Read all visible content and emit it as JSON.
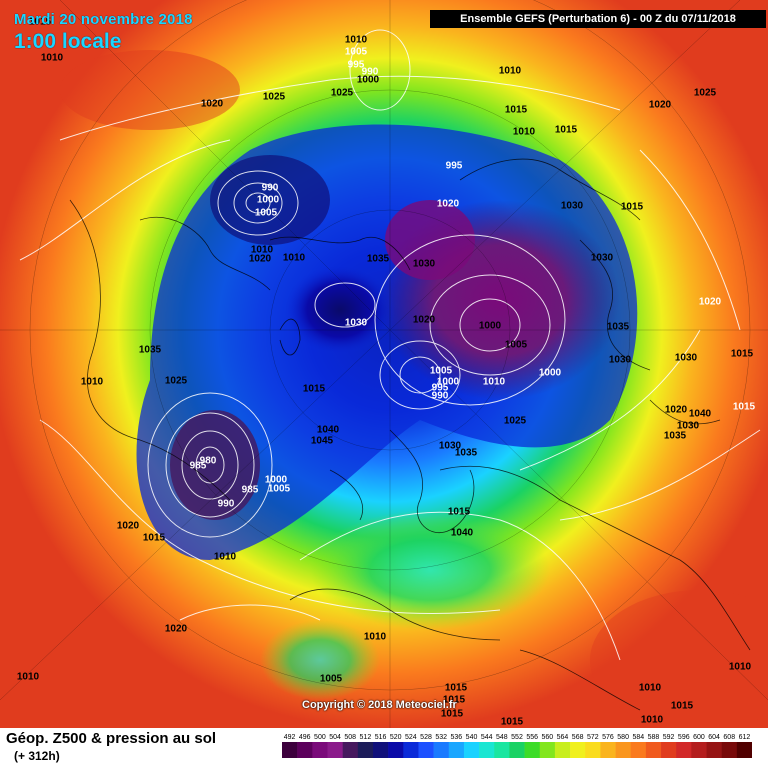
{
  "header": {
    "date": "Mardi 20 novembre 2018",
    "local_time": "1:00 locale",
    "run_info": "Ensemble GEFS  (Perturbation 6)  -  00 Z du 07/11/2018"
  },
  "footer": {
    "field_title": "Géop. Z500 & pression au sol",
    "lead_time": "(+ 312h)",
    "copyright": "Copyright © 2018 Meteociel.fr"
  },
  "colorscale": {
    "labels": [
      "492",
      "496",
      "500",
      "504",
      "508",
      "512",
      "516",
      "520",
      "524",
      "528",
      "532",
      "536",
      "540",
      "544",
      "548",
      "552",
      "556",
      "560",
      "564",
      "568",
      "572",
      "576",
      "580",
      "584",
      "588",
      "592",
      "596",
      "600",
      "604",
      "608",
      "612"
    ],
    "colors": [
      "#3d003d",
      "#5c005c",
      "#7a0a7a",
      "#8a1a8a",
      "#46185e",
      "#1c1c5a",
      "#10107a",
      "#0a0aa8",
      "#0a2ad8",
      "#1c50ff",
      "#1a7aff",
      "#1aa6ff",
      "#1ad2ff",
      "#1ae6d2",
      "#1ae6a0",
      "#1ad264",
      "#3cdc28",
      "#82e61e",
      "#c8ee1e",
      "#f0f01e",
      "#fadc1e",
      "#fab41e",
      "#fa961e",
      "#fa7a1e",
      "#f05a1e",
      "#e03c1e",
      "#d22828",
      "#b41e1e",
      "#961414",
      "#780a0a",
      "#500000"
    ]
  },
  "pressure_labels": [
    {
      "text": "1010"
    },
    {
      "text": "1015"
    },
    {
      "text": "1010"
    },
    {
      "text": "1005"
    },
    {
      "text": "995"
    },
    {
      "text": "990"
    },
    {
      "text": "1000"
    },
    {
      "text": "1025"
    },
    {
      "text": "1020"
    },
    {
      "text": "1025"
    },
    {
      "text": "1010"
    },
    {
      "text": "1015"
    },
    {
      "text": "1010"
    },
    {
      "text": "1020"
    },
    {
      "text": "1015"
    },
    {
      "text": "1025"
    },
    {
      "text": "995"
    },
    {
      "text": "990"
    },
    {
      "text": "1000"
    },
    {
      "text": "1005"
    },
    {
      "text": "1010"
    },
    {
      "text": "1020"
    },
    {
      "text": "1020"
    },
    {
      "text": "1030"
    },
    {
      "text": "1015"
    },
    {
      "text": "1010"
    },
    {
      "text": "1035"
    },
    {
      "text": "1030"
    },
    {
      "text": "1030"
    },
    {
      "text": "1020"
    },
    {
      "text": "1000"
    },
    {
      "text": "1020"
    },
    {
      "text": "1035"
    },
    {
      "text": "1030"
    },
    {
      "text": "1005"
    },
    {
      "text": "1005"
    },
    {
      "text": "1000"
    },
    {
      "text": "995"
    },
    {
      "text": "990"
    },
    {
      "text": "1010"
    },
    {
      "text": "1000"
    },
    {
      "text": "1030"
    },
    {
      "text": "1030"
    },
    {
      "text": "1015"
    },
    {
      "text": "1010"
    },
    {
      "text": "1025"
    },
    {
      "text": "1035"
    },
    {
      "text": "1015"
    },
    {
      "text": "1015"
    },
    {
      "text": "1040"
    },
    {
      "text": "1045"
    },
    {
      "text": "1025"
    },
    {
      "text": "1020"
    },
    {
      "text": "1040"
    },
    {
      "text": "1030"
    },
    {
      "text": "1035"
    },
    {
      "text": "1030"
    },
    {
      "text": "1035"
    },
    {
      "text": "985"
    },
    {
      "text": "980"
    },
    {
      "text": "985"
    },
    {
      "text": "990"
    },
    {
      "text": "1000"
    },
    {
      "text": "1005"
    },
    {
      "text": "1015"
    },
    {
      "text": "1040"
    },
    {
      "text": "1020"
    },
    {
      "text": "1015"
    },
    {
      "text": "1010"
    },
    {
      "text": "1020"
    },
    {
      "text": "1010"
    },
    {
      "text": "1005"
    },
    {
      "text": "1010"
    },
    {
      "text": "1015"
    },
    {
      "text": "1010"
    },
    {
      "text": "1015"
    },
    {
      "text": "1015"
    },
    {
      "text": "1015"
    },
    {
      "text": "1010"
    },
    {
      "text": "1015"
    },
    {
      "text": "1010"
    }
  ]
}
